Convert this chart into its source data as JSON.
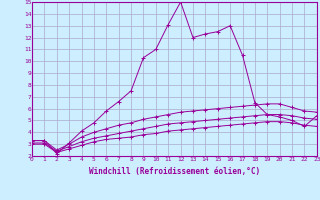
{
  "xlabel": "Windchill (Refroidissement éolien,°C)",
  "background_color": "#cceeff",
  "grid_color": "#aaaacc",
  "line_color": "#990099",
  "xlim": [
    0,
    23
  ],
  "ylim": [
    2,
    15
  ],
  "xticks": [
    0,
    1,
    2,
    3,
    4,
    5,
    6,
    7,
    8,
    9,
    10,
    11,
    12,
    13,
    14,
    15,
    16,
    17,
    18,
    19,
    20,
    21,
    22,
    23
  ],
  "yticks": [
    2,
    3,
    4,
    5,
    6,
    7,
    8,
    9,
    10,
    11,
    12,
    13,
    14,
    15
  ],
  "series1_x": [
    0,
    1,
    2,
    3,
    4,
    5,
    6,
    7,
    8,
    9,
    10,
    11,
    12,
    13,
    14,
    15,
    16,
    17,
    18,
    19,
    20,
    21,
    22,
    23
  ],
  "series1_y": [
    3.3,
    3.3,
    2.2,
    3.1,
    4.1,
    4.8,
    5.8,
    6.6,
    7.5,
    10.3,
    11.0,
    13.1,
    15.0,
    12.0,
    12.3,
    12.5,
    13.0,
    10.5,
    6.5,
    5.5,
    5.3,
    5.0,
    4.5,
    5.4
  ],
  "series2_x": [
    0,
    1,
    2,
    3,
    4,
    5,
    6,
    7,
    8,
    9,
    10,
    11,
    12,
    13,
    14,
    15,
    16,
    17,
    18,
    19,
    20,
    21,
    22,
    23
  ],
  "series2_y": [
    3.3,
    3.3,
    2.5,
    3.0,
    3.6,
    4.0,
    4.3,
    4.6,
    4.8,
    5.1,
    5.3,
    5.5,
    5.7,
    5.8,
    5.9,
    6.0,
    6.1,
    6.2,
    6.3,
    6.4,
    6.4,
    6.1,
    5.8,
    5.7
  ],
  "series3_x": [
    0,
    1,
    2,
    3,
    4,
    5,
    6,
    7,
    8,
    9,
    10,
    11,
    12,
    13,
    14,
    15,
    16,
    17,
    18,
    19,
    20,
    21,
    22,
    23
  ],
  "series3_y": [
    3.1,
    3.1,
    2.4,
    2.8,
    3.2,
    3.5,
    3.7,
    3.9,
    4.1,
    4.3,
    4.5,
    4.7,
    4.8,
    4.9,
    5.0,
    5.1,
    5.2,
    5.3,
    5.4,
    5.5,
    5.5,
    5.4,
    5.2,
    5.1
  ],
  "series4_x": [
    0,
    1,
    2,
    3,
    4,
    5,
    6,
    7,
    8,
    9,
    10,
    11,
    12,
    13,
    14,
    15,
    16,
    17,
    18,
    19,
    20,
    21,
    22,
    23
  ],
  "series4_y": [
    3.0,
    3.0,
    2.3,
    2.6,
    2.9,
    3.2,
    3.4,
    3.5,
    3.6,
    3.8,
    3.9,
    4.1,
    4.2,
    4.3,
    4.4,
    4.5,
    4.6,
    4.7,
    4.8,
    4.9,
    4.9,
    4.8,
    4.6,
    4.5
  ]
}
